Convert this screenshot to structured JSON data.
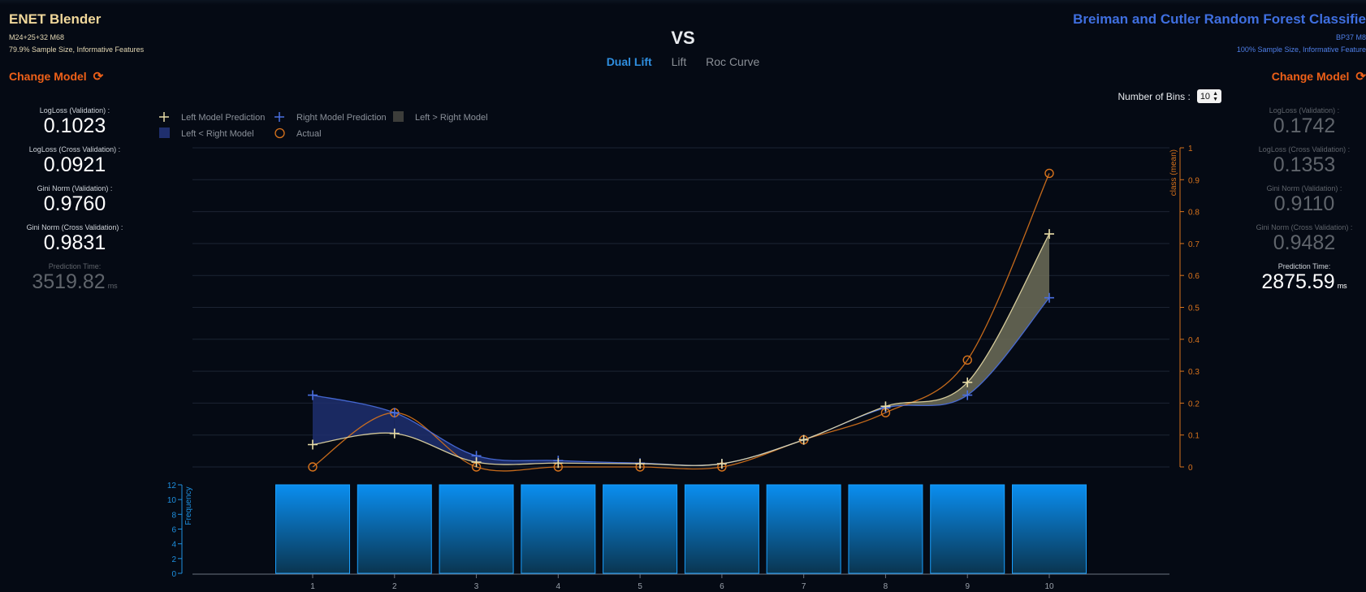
{
  "left_model": {
    "title": "ENET Blender",
    "subtitle1": "M24+25+32 M68",
    "subtitle2": "79.9% Sample Size, Informative Features",
    "change_label": "Change Model",
    "metrics": [
      {
        "label": "LogLoss (Validation) :",
        "value": "0.1023",
        "unit": "",
        "winner": true
      },
      {
        "label": "LogLoss (Cross Validation) :",
        "value": "0.0921",
        "unit": "",
        "winner": true
      },
      {
        "label": "Gini Norm (Validation) :",
        "value": "0.9760",
        "unit": "",
        "winner": true
      },
      {
        "label": "Gini Norm (Cross Validation) :",
        "value": "0.9831",
        "unit": "",
        "winner": true
      },
      {
        "label": "Prediction Time:",
        "value": "3519.82",
        "unit": "ms",
        "winner": false
      }
    ]
  },
  "right_model": {
    "title": "Breiman and Cutler Random Forest Classifie",
    "subtitle1": "BP37 M8",
    "subtitle2": "100% Sample Size, Informative Feature",
    "change_label": "Change Model",
    "metrics": [
      {
        "label": "LogLoss (Validation) :",
        "value": "0.1742",
        "unit": "",
        "winner": false
      },
      {
        "label": "LogLoss (Cross Validation) :",
        "value": "0.1353",
        "unit": "",
        "winner": false
      },
      {
        "label": "Gini Norm (Validation) :",
        "value": "0.9110",
        "unit": "",
        "winner": false
      },
      {
        "label": "Gini Norm (Cross Validation) :",
        "value": "0.9482",
        "unit": "",
        "winner": false
      },
      {
        "label": "Prediction Time:",
        "value": "2875.59",
        "unit": "ms",
        "winner": true
      }
    ]
  },
  "vs_label": "VS",
  "tabs": [
    {
      "label": "Dual Lift",
      "active": true
    },
    {
      "label": "Lift",
      "active": false
    },
    {
      "label": "Roc Curve",
      "active": false
    }
  ],
  "bins": {
    "label": "Number of Bins :",
    "value": "10"
  },
  "icons": {
    "refresh": "refresh-icon",
    "stepper": "stepper-icon"
  },
  "colors": {
    "left_model": "#e8dca6",
    "right_model": "#4a6fe0",
    "actual": "#d8731c",
    "left_gt_right_fill": "#6d6d58",
    "left_lt_right_fill": "#1f2f6e",
    "frequency": "#1e90e0",
    "accent": "#ee6018",
    "tab_active": "#2f8fe0"
  },
  "chart_data": {
    "type": "line",
    "x": [
      1,
      2,
      3,
      4,
      5,
      6,
      7,
      8,
      9,
      10
    ],
    "series": [
      {
        "name": "Left Model Prediction",
        "values": [
          0.07,
          0.105,
          0.015,
          0.012,
          0.01,
          0.01,
          0.085,
          0.19,
          0.265,
          0.73
        ]
      },
      {
        "name": "Right Model Prediction",
        "values": [
          0.225,
          0.17,
          0.035,
          0.02,
          0.012,
          0.01,
          0.085,
          0.185,
          0.225,
          0.53
        ]
      },
      {
        "name": "Actual",
        "values": [
          0.0,
          0.17,
          0.0,
          0.0,
          0.0,
          0.0,
          0.085,
          0.17,
          0.335,
          0.92
        ]
      }
    ],
    "fill_legend": [
      {
        "name": "Left > Right Model"
      },
      {
        "name": "Left < Right Model"
      }
    ],
    "ylabel": "class (mean)",
    "ylim": [
      0,
      1
    ],
    "yticks": [
      0,
      0.1,
      0.2,
      0.3,
      0.4,
      0.5,
      0.6,
      0.7,
      0.8,
      0.9,
      1
    ],
    "ytick_labels": [
      "0",
      "0.1",
      "0.2",
      "0.3",
      "0.4",
      "0.5",
      "0.6",
      "0.7",
      "0.8",
      "0.9",
      "1"
    ],
    "xtick_labels": [
      "1",
      "2",
      "3",
      "4",
      "5",
      "6",
      "7",
      "8",
      "9",
      "10"
    ],
    "grid": true,
    "legend_position": "top-left",
    "frequency": {
      "type": "bar",
      "ylabel": "Frequency",
      "values": [
        12,
        12,
        12,
        12,
        12,
        12,
        12,
        12,
        12,
        12
      ],
      "ylim": [
        0,
        12
      ],
      "yticks": [
        0,
        2,
        4,
        6,
        8,
        10,
        12
      ],
      "ytick_labels": [
        "0",
        "2",
        "4",
        "6",
        "8",
        "10",
        "12"
      ]
    }
  }
}
